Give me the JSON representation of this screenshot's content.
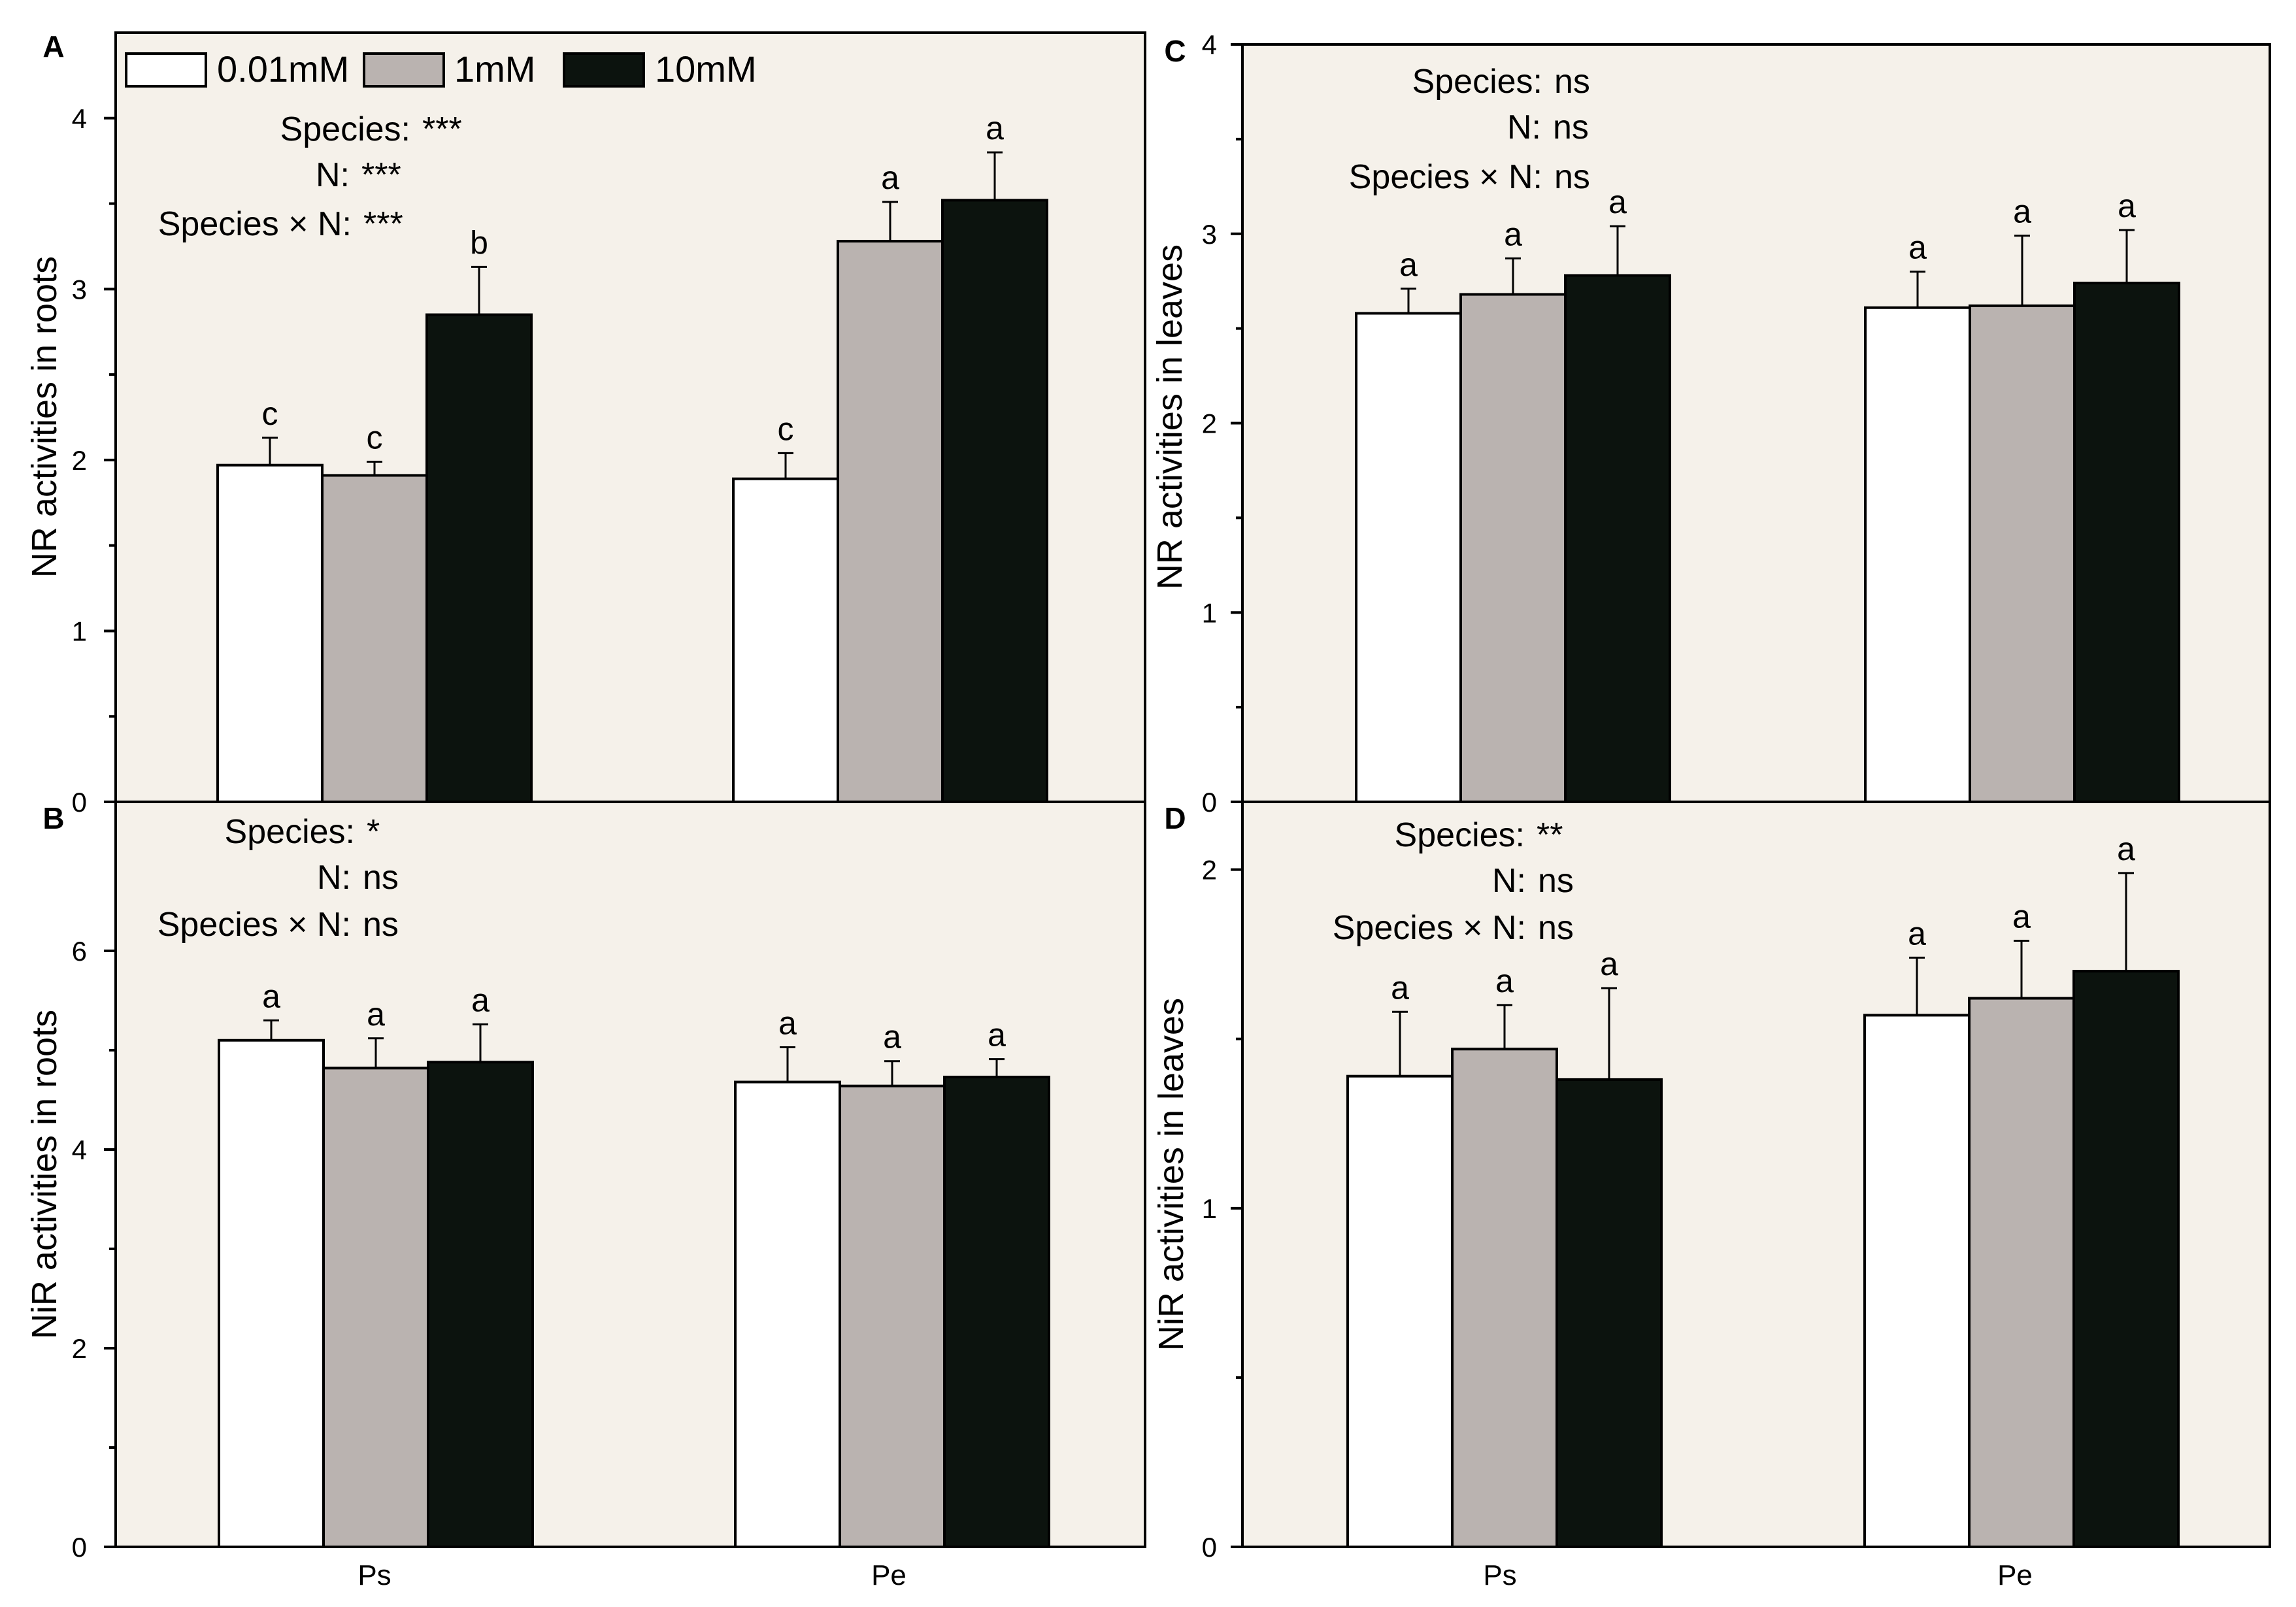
{
  "colors": {
    "0.01mM": "#ffffff",
    "1mM": "#bab3b0",
    "10mM": "#0c130e",
    "frame_bg": "#f5f1ea"
  },
  "legend": {
    "entries": [
      {
        "label": "0.01mM",
        "color": "#ffffff"
      },
      {
        "label": "1mM",
        "color": "#bab3b0"
      },
      {
        "label": "10mM",
        "color": "#0c130e"
      }
    ]
  },
  "chart_data": [
    {
      "id": "A",
      "panel_label": "A",
      "type": "bar",
      "ylabel": "NR activities in roots",
      "categories": [
        "Ps",
        "Pe"
      ],
      "ylim": [
        0,
        4.5
      ],
      "yticks": [
        0,
        1,
        2,
        3,
        4
      ],
      "series": [
        {
          "name": "0.01mM",
          "values": [
            1.97,
            1.89
          ],
          "errors": [
            0.16,
            0.15
          ],
          "letters": [
            "c",
            "c"
          ]
        },
        {
          "name": "1mM",
          "values": [
            1.91,
            3.28
          ],
          "errors": [
            0.08,
            0.23
          ],
          "letters": [
            "c",
            "a"
          ]
        },
        {
          "name": "10mM",
          "values": [
            2.85,
            3.52
          ],
          "errors": [
            0.28,
            0.28
          ],
          "letters": [
            "b",
            "a"
          ]
        }
      ],
      "anova": [
        {
          "term": "Species:",
          "sig": "***"
        },
        {
          "term": "N:",
          "sig": "***"
        },
        {
          "term": "Species × N:",
          "sig": "***"
        }
      ]
    },
    {
      "id": "B",
      "panel_label": "B",
      "type": "bar",
      "ylabel": "NiR activities in roots",
      "categories": [
        "Ps",
        "Pe"
      ],
      "ylim": [
        0,
        7.5
      ],
      "yticks": [
        0,
        2,
        4,
        6
      ],
      "series": [
        {
          "name": "0.01mM",
          "values": [
            5.1,
            4.68
          ],
          "errors": [
            0.2,
            0.35
          ],
          "letters": [
            "a",
            "a"
          ]
        },
        {
          "name": "1mM",
          "values": [
            4.82,
            4.64
          ],
          "errors": [
            0.3,
            0.25
          ],
          "letters": [
            "a",
            "a"
          ]
        },
        {
          "name": "10mM",
          "values": [
            4.88,
            4.73
          ],
          "errors": [
            0.38,
            0.18
          ],
          "letters": [
            "a",
            "a"
          ]
        }
      ],
      "anova": [
        {
          "term": "Species:",
          "sig": "*"
        },
        {
          "term": "N:",
          "sig": "ns"
        },
        {
          "term": "Species × N:",
          "sig": "ns"
        }
      ]
    },
    {
      "id": "C",
      "panel_label": "C",
      "type": "bar",
      "ylabel": "NR activities in leaves",
      "categories": [
        "Ps",
        "Pe"
      ],
      "ylim": [
        0,
        4
      ],
      "yticks": [
        0,
        1,
        2,
        3,
        4
      ],
      "series": [
        {
          "name": "0.01mM",
          "values": [
            2.58,
            2.61
          ],
          "errors": [
            0.13,
            0.19
          ],
          "letters": [
            "a",
            "a"
          ]
        },
        {
          "name": "1mM",
          "values": [
            2.68,
            2.62
          ],
          "errors": [
            0.19,
            0.37
          ],
          "letters": [
            "a",
            "a"
          ]
        },
        {
          "name": "10mM",
          "values": [
            2.78,
            2.74
          ],
          "errors": [
            0.26,
            0.28
          ],
          "letters": [
            "a",
            "a"
          ]
        }
      ],
      "anova": [
        {
          "term": "Species:",
          "sig": "ns"
        },
        {
          "term": "N:",
          "sig": "ns"
        },
        {
          "term": "Species × N:",
          "sig": "ns"
        }
      ]
    },
    {
      "id": "D",
      "panel_label": "D",
      "type": "bar",
      "ylabel": "NiR activities in leaves",
      "categories": [
        "Ps",
        "Pe"
      ],
      "ylim": [
        0,
        2.2
      ],
      "yticks": [
        0,
        1,
        2
      ],
      "series": [
        {
          "name": "0.01mM",
          "values": [
            1.39,
            1.57
          ],
          "errors": [
            0.19,
            0.17
          ],
          "letters": [
            "a",
            "a"
          ]
        },
        {
          "name": "1mM",
          "values": [
            1.47,
            1.62
          ],
          "errors": [
            0.13,
            0.17
          ],
          "letters": [
            "a",
            "a"
          ]
        },
        {
          "name": "10mM",
          "values": [
            1.38,
            1.7
          ],
          "errors": [
            0.27,
            0.29
          ],
          "letters": [
            "a",
            "a"
          ]
        }
      ],
      "anova": [
        {
          "term": "Species:",
          "sig": "**"
        },
        {
          "term": "N:",
          "sig": "ns"
        },
        {
          "term": "Species × N:",
          "sig": "ns"
        }
      ]
    }
  ]
}
